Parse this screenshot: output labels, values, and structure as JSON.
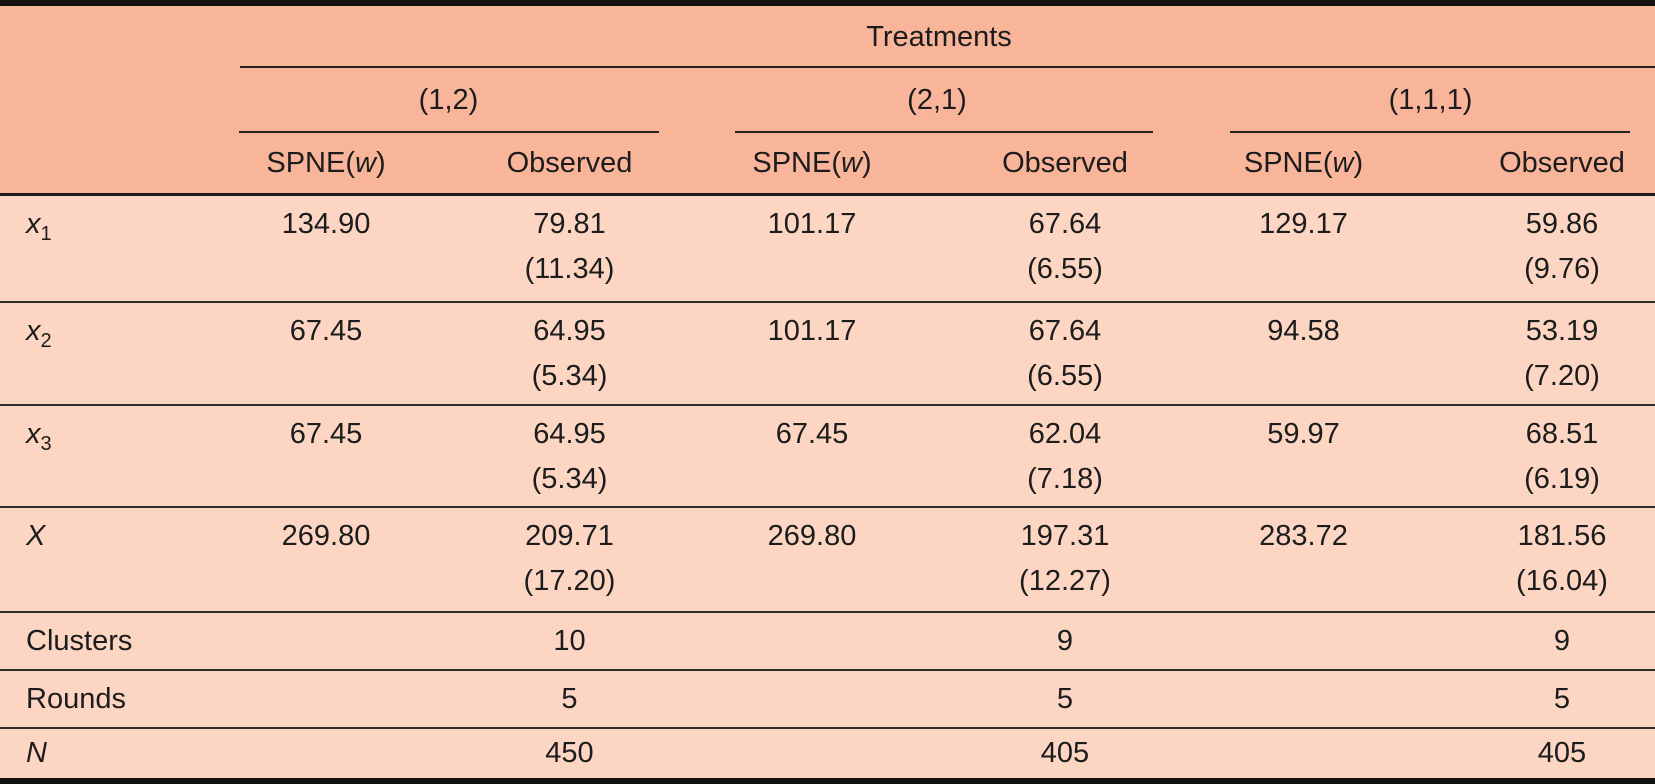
{
  "colors": {
    "header_bg": "#f8b59a",
    "body_bg": "#fcd6c3",
    "rule": "#242424",
    "rule_heavy": "#1c1c1c",
    "border": "#121212",
    "text": "#1c1c1c"
  },
  "header": {
    "title": "Treatments",
    "groups": [
      "(1,2)",
      "(2,1)",
      "(1,1,1)"
    ],
    "spne": {
      "pre": "SPNE(",
      "var": "w",
      "post": ")"
    },
    "observed": "Observed"
  },
  "rows": [
    {
      "label_base": "x",
      "label_sub": "1",
      "cells": [
        {
          "spne": "134.90",
          "observed": "79.81",
          "se": "(11.34)"
        },
        {
          "spne": "101.17",
          "observed": "67.64",
          "se": "(6.55)"
        },
        {
          "spne": "129.17",
          "observed": "59.86",
          "se": "(9.76)"
        }
      ]
    },
    {
      "label_base": "x",
      "label_sub": "2",
      "cells": [
        {
          "spne": "67.45",
          "observed": "64.95",
          "se": "(5.34)"
        },
        {
          "spne": "101.17",
          "observed": "67.64",
          "se": "(6.55)"
        },
        {
          "spne": "94.58",
          "observed": "53.19",
          "se": "(7.20)"
        }
      ]
    },
    {
      "label_base": "x",
      "label_sub": "3",
      "cells": [
        {
          "spne": "67.45",
          "observed": "64.95",
          "se": "(5.34)"
        },
        {
          "spne": "67.45",
          "observed": "62.04",
          "se": "(7.18)"
        },
        {
          "spne": "59.97",
          "observed": "68.51",
          "se": "(6.19)"
        }
      ]
    },
    {
      "label_base": "X",
      "label_sub": "",
      "cells": [
        {
          "spne": "269.80",
          "observed": "209.71",
          "se": "(17.20)"
        },
        {
          "spne": "269.80",
          "observed": "197.31",
          "se": "(12.27)"
        },
        {
          "spne": "283.72",
          "observed": "181.56",
          "se": "(16.04)"
        }
      ]
    }
  ],
  "summary_rows": [
    {
      "label": "Clusters",
      "values": [
        "10",
        "9",
        "9"
      ]
    },
    {
      "label": "Rounds",
      "values": [
        "5",
        "5",
        "5"
      ]
    },
    {
      "label": "N",
      "values": [
        "450",
        "405",
        "405"
      ]
    }
  ]
}
